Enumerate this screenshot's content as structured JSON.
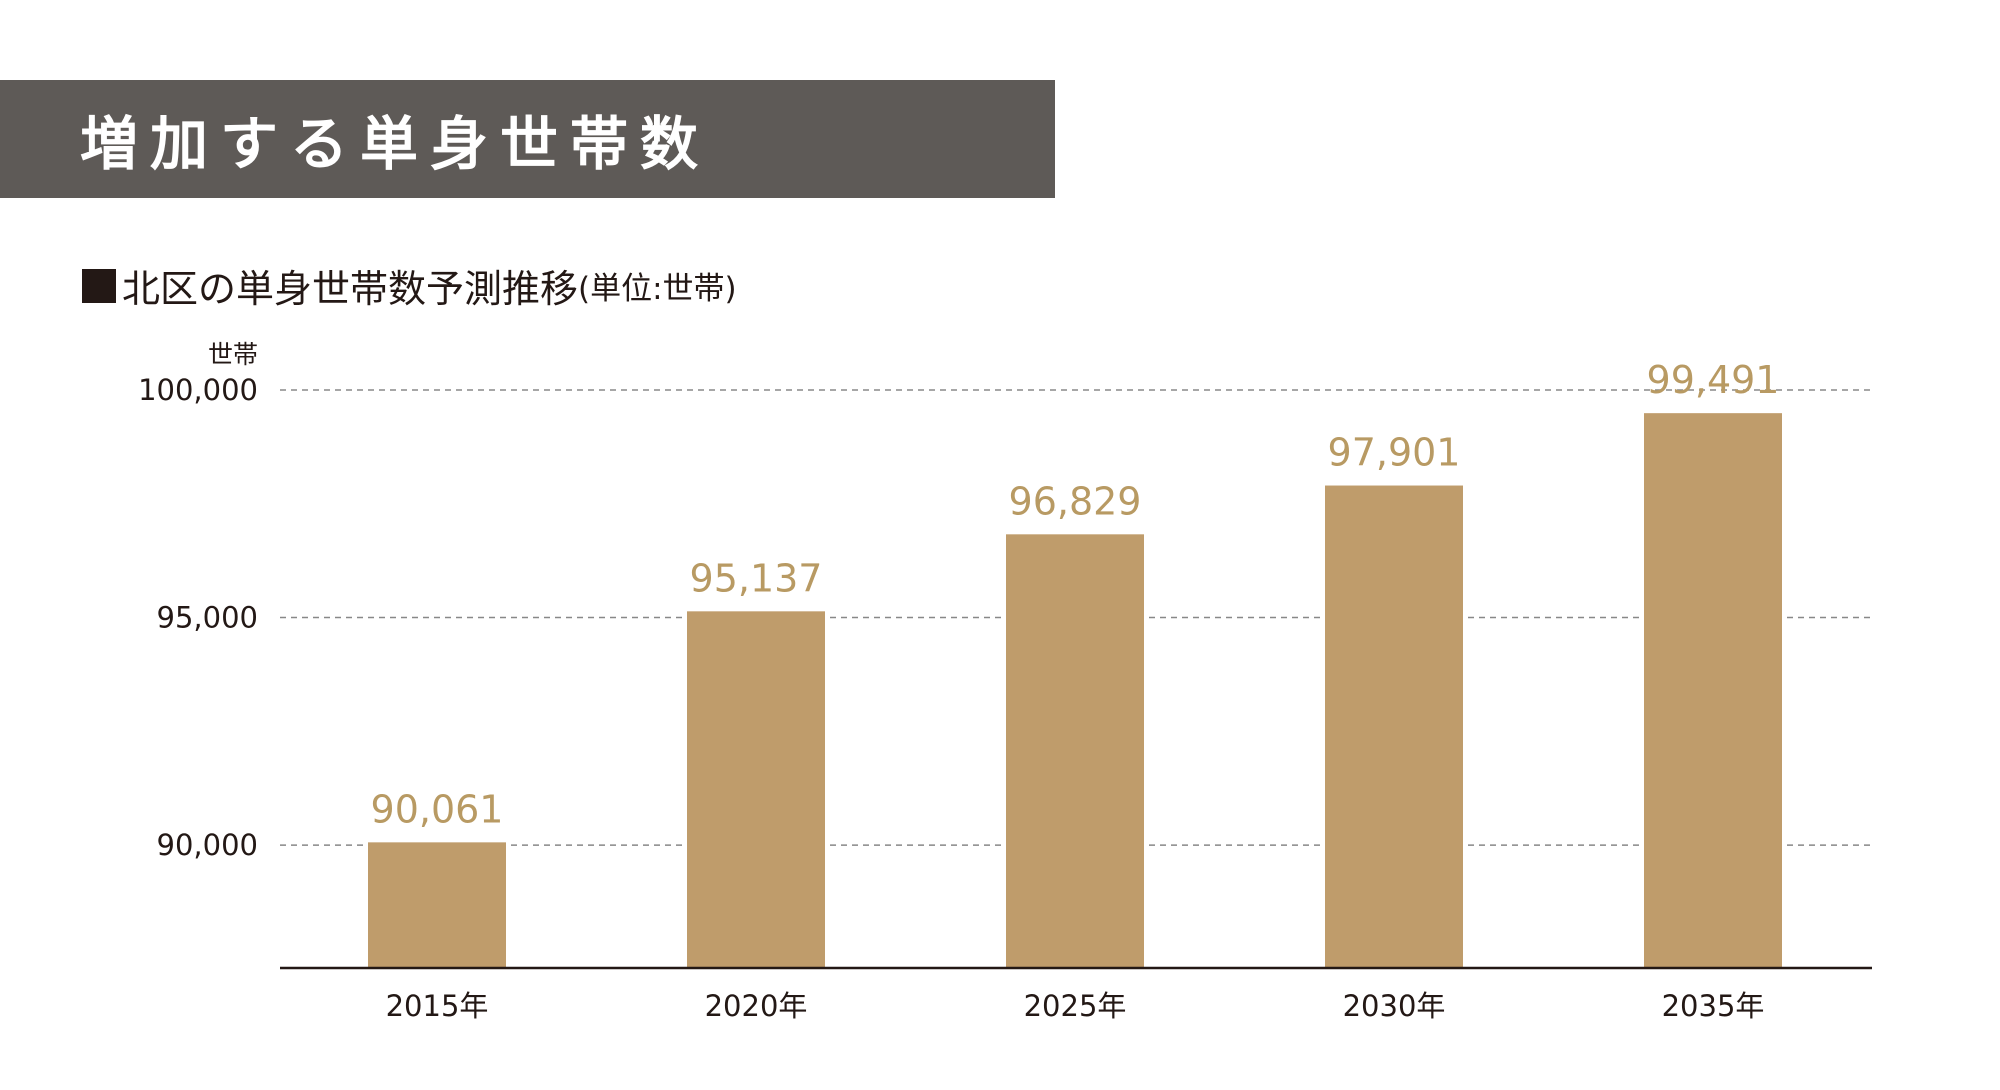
{
  "header": {
    "title": "増加する単身世帯数"
  },
  "subtitle": {
    "marker_icon": "black-square-icon",
    "main": "北区の単身世帯数予測推移",
    "unit": "(単位:世帯)"
  },
  "chart_data": {
    "type": "bar",
    "categories": [
      "2015年",
      "2020年",
      "2025年",
      "2030年",
      "2035年"
    ],
    "values": [
      90061,
      95137,
      96829,
      97901,
      99491
    ],
    "value_labels": [
      "90,061",
      "95,137",
      "96,829",
      "97,901",
      "99,491"
    ],
    "ylabel": "世帯",
    "ylim": [
      87300,
      100000
    ],
    "yticks": [
      90000,
      95000,
      100000
    ],
    "ytick_labels": [
      "90,000",
      "95,000",
      "100,000"
    ],
    "grid": "horizontal dashed",
    "legend": "none",
    "bar_color": "#bf9c6b",
    "value_label_color": "#b89a63",
    "gridline_color": "#888888"
  }
}
